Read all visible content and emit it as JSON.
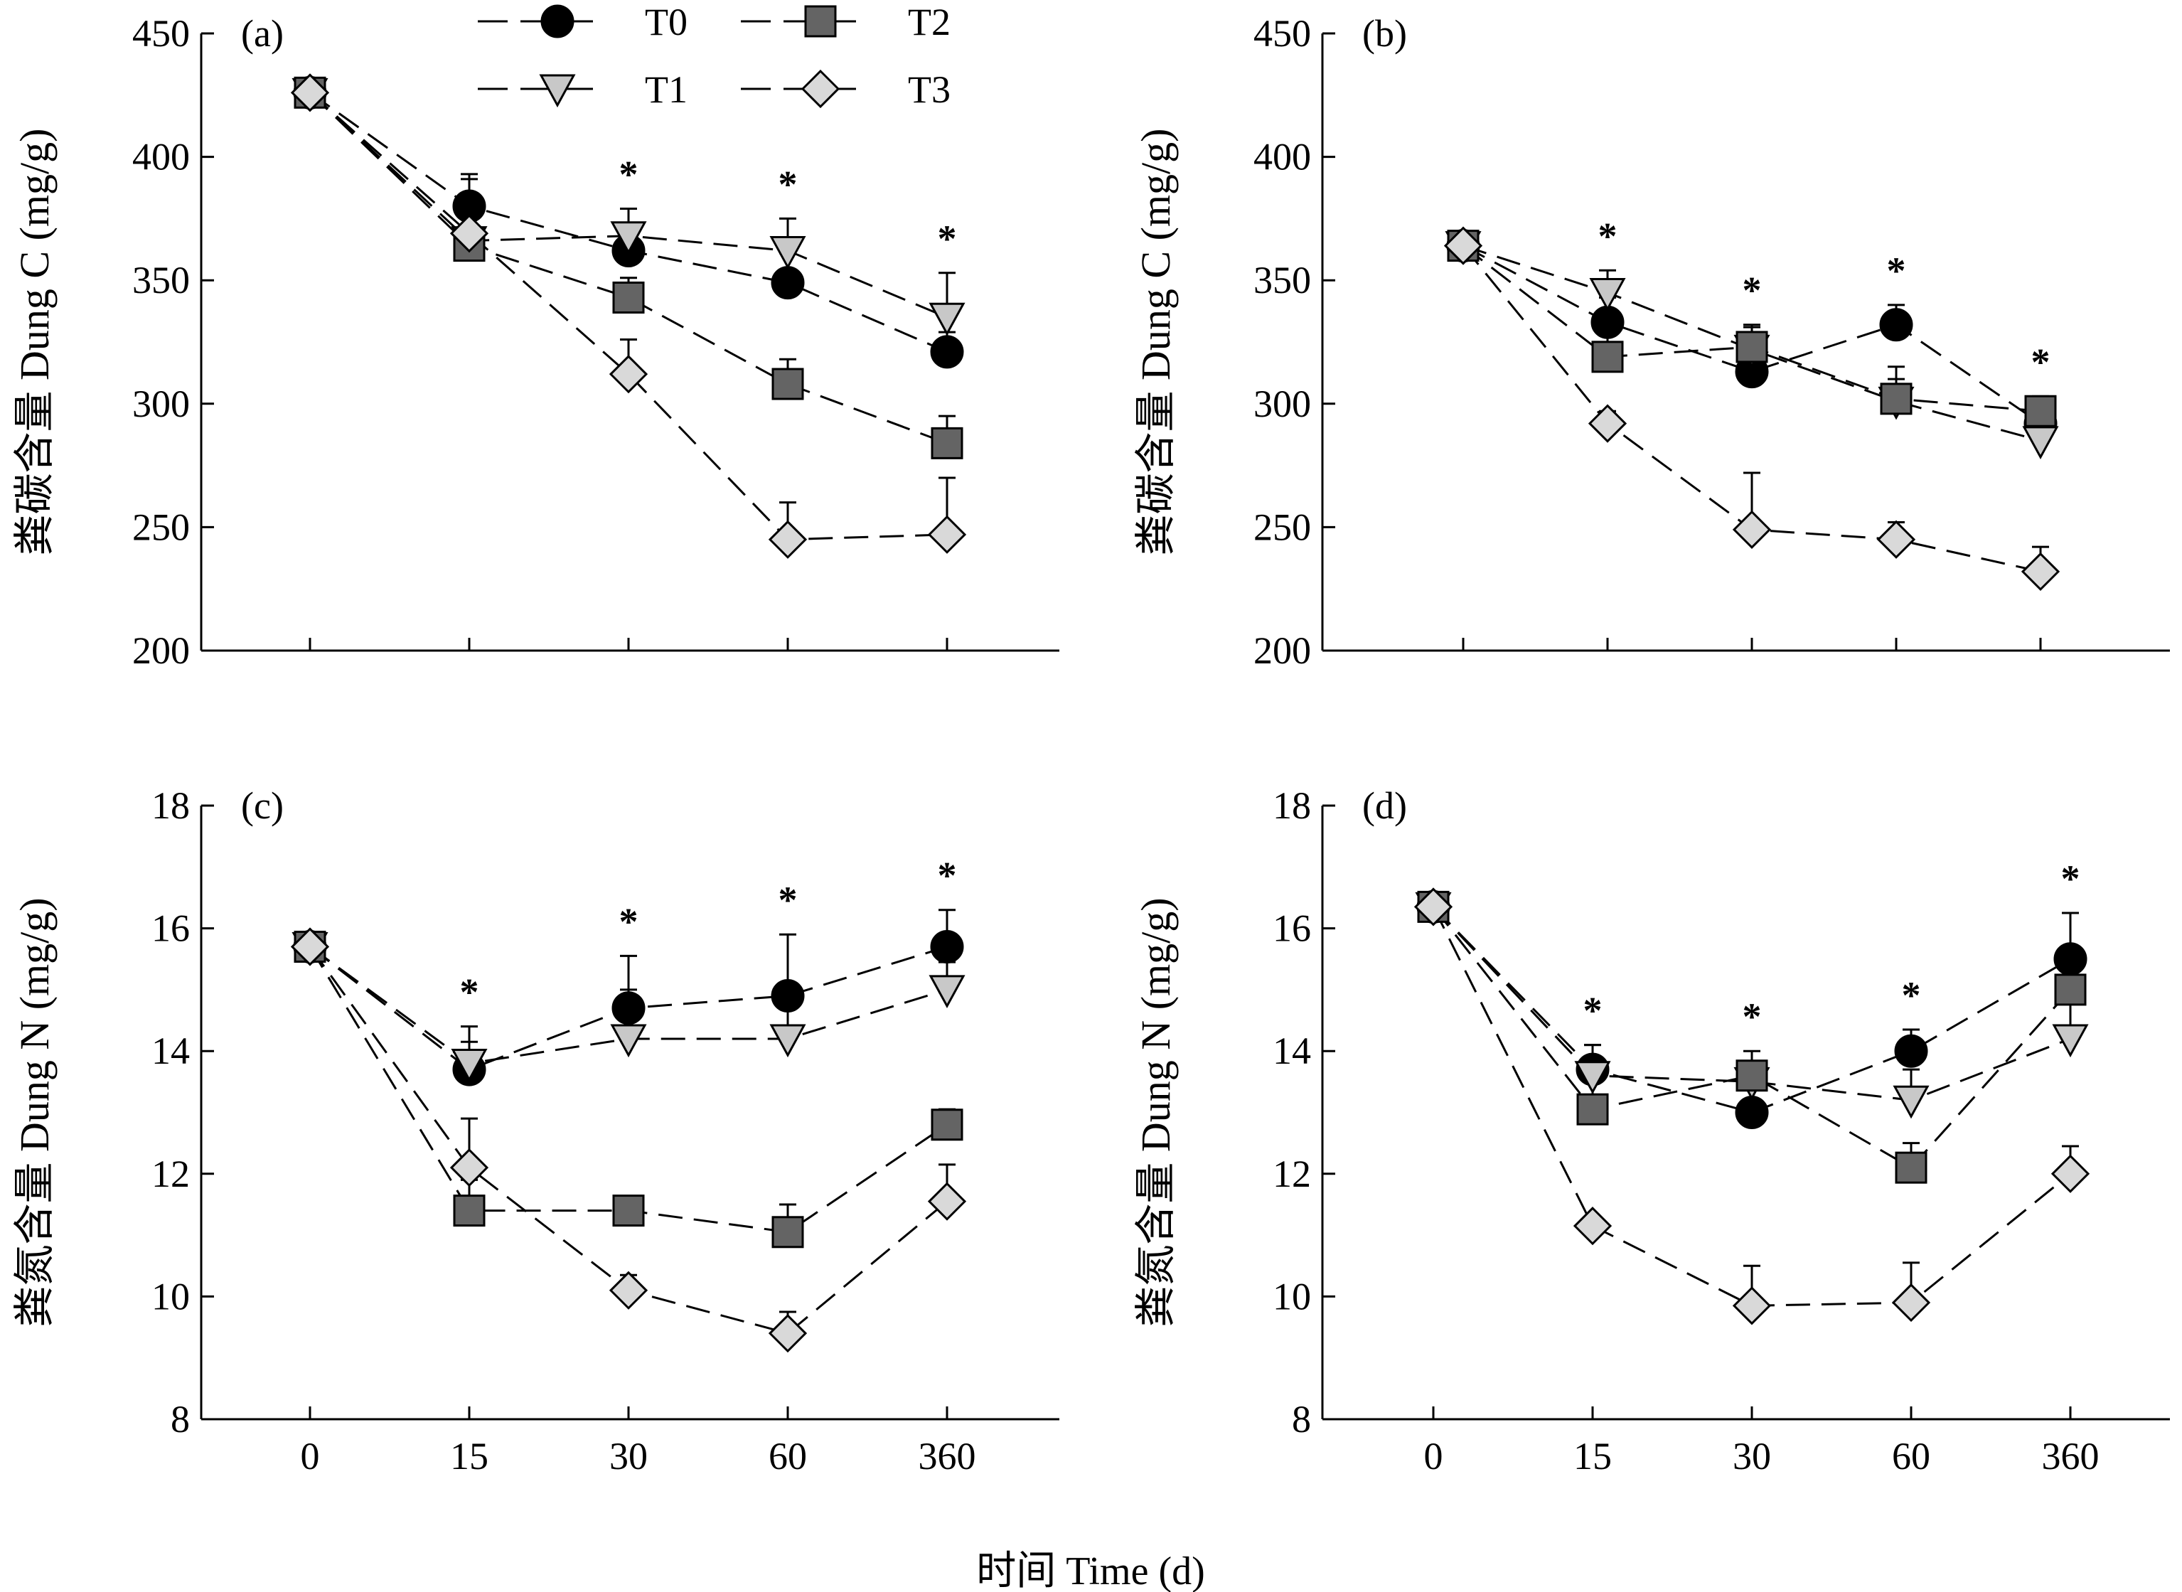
{
  "chart_data": [
    {
      "type": "line",
      "panel_label": "(a)",
      "ylabel": "粪碳含量  Dung C (mg/g)",
      "ylim": [
        200,
        450
      ],
      "yticks": [
        200,
        250,
        300,
        350,
        400,
        450
      ],
      "categories": [
        "0",
        "15",
        "30",
        "60",
        "360"
      ],
      "show_xtick_labels": false,
      "series": [
        {
          "name": "T0",
          "values": [
            426,
            380,
            362,
            349,
            321
          ],
          "err": [
            3,
            13,
            9,
            12,
            8
          ]
        },
        {
          "name": "T1",
          "values": [
            426,
            366,
            368,
            362,
            335
          ],
          "err": [
            3,
            18,
            11,
            13,
            18
          ]
        },
        {
          "name": "T2",
          "values": [
            426,
            364,
            343,
            308,
            284
          ],
          "err": [
            3,
            18,
            8,
            10,
            11
          ]
        },
        {
          "name": "T3",
          "values": [
            426,
            369,
            312,
            245,
            247
          ],
          "err": [
            3,
            22,
            14,
            15,
            23
          ]
        }
      ],
      "significance": [
        null,
        null,
        "*",
        "*",
        "*"
      ]
    },
    {
      "type": "line",
      "panel_label": "(b)",
      "ylabel": "粪碳含量  Dung C (mg/g)",
      "ylim": [
        200,
        450
      ],
      "yticks": [
        200,
        250,
        300,
        350,
        400,
        450
      ],
      "categories": [
        "0",
        "15",
        "30",
        "60",
        "360"
      ],
      "show_xtick_labels": false,
      "series": [
        {
          "name": "T0",
          "values": [
            364,
            333,
            313,
            332,
            292
          ],
          "err": [
            3,
            10,
            13,
            8,
            8
          ]
        },
        {
          "name": "T1",
          "values": [
            364,
            345,
            322,
            301,
            285
          ],
          "err": [
            3,
            9,
            9,
            14,
            17
          ]
        },
        {
          "name": "T2",
          "values": [
            364,
            319,
            323,
            302,
            297
          ],
          "err": [
            3,
            10,
            9,
            8,
            6
          ]
        },
        {
          "name": "T3",
          "values": [
            364,
            292,
            249,
            245,
            232
          ],
          "err": [
            3,
            5,
            23,
            7,
            10
          ]
        }
      ],
      "significance": [
        null,
        "*",
        "*",
        "*",
        "*"
      ]
    },
    {
      "type": "line",
      "panel_label": "(c)",
      "ylabel": "粪氮含量  Dung N (mg/g)",
      "ylim": [
        8,
        18
      ],
      "yticks": [
        8,
        10,
        12,
        14,
        16,
        18
      ],
      "categories": [
        "0",
        "15",
        "30",
        "60",
        "360"
      ],
      "show_xtick_labels": true,
      "series": [
        {
          "name": "T0",
          "values": [
            15.7,
            13.7,
            14.7,
            14.9,
            15.7
          ],
          "err": [
            0.15,
            0.45,
            0.85,
            1.0,
            0.6
          ]
        },
        {
          "name": "T1",
          "values": [
            15.7,
            13.8,
            14.2,
            14.2,
            15.0
          ],
          "err": [
            0.15,
            0.6,
            0.8,
            0.5,
            0.45
          ]
        },
        {
          "name": "T2",
          "values": [
            15.7,
            11.4,
            11.4,
            11.05,
            12.8
          ],
          "err": [
            0.15,
            0.5,
            0.2,
            0.45,
            0.25
          ]
        },
        {
          "name": "T3",
          "values": [
            15.7,
            12.1,
            10.1,
            9.4,
            11.55
          ],
          "err": [
            0.15,
            0.8,
            0.25,
            0.35,
            0.6
          ]
        }
      ],
      "significance": [
        null,
        "*",
        "*",
        "*",
        "*"
      ]
    },
    {
      "type": "line",
      "panel_label": "(d)",
      "ylabel": "粪氮含量  Dung N (mg/g)",
      "ylim": [
        8,
        18
      ],
      "yticks": [
        8,
        10,
        12,
        14,
        16,
        18
      ],
      "categories": [
        "0",
        "15",
        "30",
        "60",
        "360"
      ],
      "show_xtick_labels": true,
      "series": [
        {
          "name": "T0",
          "values": [
            16.35,
            13.7,
            13.0,
            14.0,
            15.5
          ],
          "err": [
            0.1,
            0.4,
            0.4,
            0.35,
            0.75
          ]
        },
        {
          "name": "T1",
          "values": [
            16.35,
            13.6,
            13.5,
            13.2,
            14.2
          ],
          "err": [
            0.1,
            0.5,
            0.3,
            0.5,
            0.6
          ]
        },
        {
          "name": "T2",
          "values": [
            16.35,
            13.05,
            13.6,
            12.1,
            15.0
          ],
          "err": [
            0.1,
            0.5,
            0.4,
            0.4,
            0.35
          ]
        },
        {
          "name": "T3",
          "values": [
            16.35,
            11.15,
            9.85,
            9.9,
            12.0
          ],
          "err": [
            0.1,
            0.15,
            0.65,
            0.65,
            0.45
          ]
        }
      ],
      "significance": [
        null,
        "*",
        "*",
        "*",
        "*"
      ]
    }
  ],
  "legend": [
    {
      "name": "T0",
      "marker": "circle",
      "fill": "#000000"
    },
    {
      "name": "T1",
      "marker": "triangle-down",
      "fill": "#c8c8c8"
    },
    {
      "name": "T2",
      "marker": "square",
      "fill": "#646464"
    },
    {
      "name": "T3",
      "marker": "diamond",
      "fill": "#d9d9d9"
    }
  ],
  "xlabel": "时间 Time (d)"
}
